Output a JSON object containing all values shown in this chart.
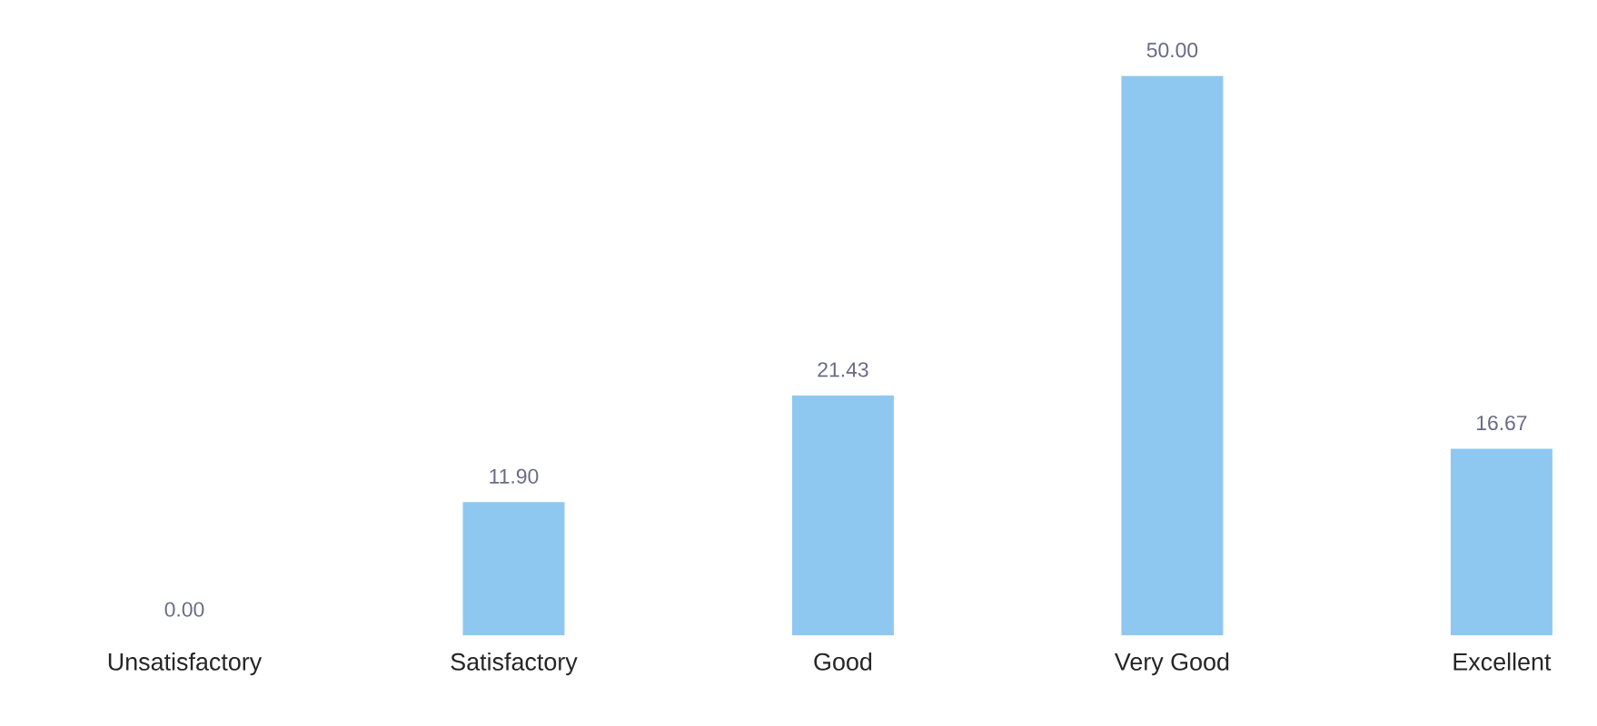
{
  "chart_data": {
    "type": "bar",
    "categories": [
      "Unsatisfactory",
      "Satisfactory",
      "Good",
      "Very Good",
      "Excellent"
    ],
    "values": [
      0.0,
      11.9,
      21.43,
      50.0,
      16.67
    ],
    "value_labels": [
      "0.00",
      "11.90",
      "21.43",
      "50.00",
      "16.67"
    ],
    "color": "#8ec8f0"
  }
}
